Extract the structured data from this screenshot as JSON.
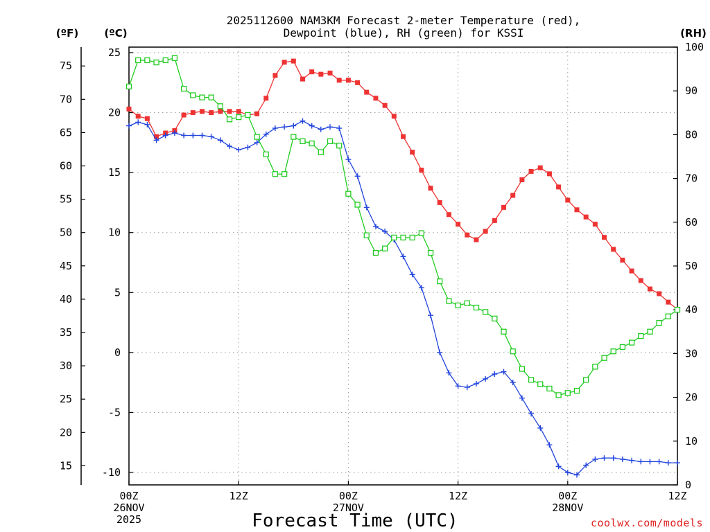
{
  "chart_data": {
    "type": "line",
    "title_lines": [
      "2025112600 NAM3KM Forecast 2-meter Temperature (red),",
      "Dewpoint (blue), RH (green) for KSSI"
    ],
    "units": {
      "fahrenheit": "(ºF)",
      "celsius": "(ºC)",
      "rh": "(RH)"
    },
    "xlabel": "Forecast Time (UTC)",
    "credit": "coolwx.com/models",
    "x_range_hours": [
      0,
      60
    ],
    "ylim_celsius": [
      -10.5,
      25.5
    ],
    "rh_range": [
      0,
      100
    ],
    "x_ticks": [
      {
        "hour": 0,
        "lines": [
          "00Z",
          "26NOV",
          "2025"
        ]
      },
      {
        "hour": 12,
        "lines": [
          "12Z"
        ]
      },
      {
        "hour": 24,
        "lines": [
          "00Z",
          "27NOV"
        ]
      },
      {
        "hour": 36,
        "lines": [
          "12Z"
        ]
      },
      {
        "hour": 48,
        "lines": [
          "00Z",
          "28NOV"
        ]
      },
      {
        "hour": 60,
        "lines": [
          "12Z"
        ]
      }
    ],
    "celsius_ticks": [
      -10,
      -5,
      0,
      5,
      10,
      15,
      20,
      25
    ],
    "fahrenheit_ticks": [
      15,
      20,
      25,
      30,
      35,
      40,
      45,
      50,
      55,
      60,
      65,
      70,
      75
    ],
    "rh_ticks": [
      0,
      10,
      20,
      30,
      40,
      50,
      60,
      70,
      80,
      90,
      100
    ],
    "hours": [
      0,
      1,
      2,
      3,
      4,
      5,
      6,
      7,
      8,
      9,
      10,
      11,
      12,
      13,
      14,
      15,
      16,
      17,
      18,
      19,
      20,
      21,
      22,
      23,
      24,
      25,
      26,
      27,
      28,
      29,
      30,
      31,
      32,
      33,
      34,
      35,
      36,
      37,
      38,
      39,
      40,
      41,
      42,
      43,
      44,
      45,
      46,
      47,
      48,
      49,
      50,
      51,
      52,
      53,
      54,
      55,
      56,
      57,
      58,
      59,
      60
    ],
    "series": [
      {
        "name": "2-meter Temperature",
        "unit": "C",
        "color": "#ee3333",
        "marker": "filled-square",
        "values": [
          20.3,
          19.7,
          19.5,
          18.0,
          18.3,
          18.5,
          19.8,
          20.0,
          20.1,
          20.0,
          20.1,
          20.1,
          20.1,
          19.8,
          19.9,
          21.2,
          23.1,
          24.2,
          24.3,
          22.8,
          23.4,
          23.2,
          23.3,
          22.7,
          22.7,
          22.5,
          21.7,
          21.2,
          20.6,
          19.7,
          18.0,
          16.7,
          15.2,
          13.7,
          12.5,
          11.5,
          10.7,
          9.8,
          9.4,
          10.1,
          11.0,
          12.1,
          13.1,
          14.4,
          15.1,
          15.4,
          14.9,
          13.8,
          12.7,
          11.9,
          11.3,
          10.7,
          9.6,
          8.6,
          7.7,
          6.8,
          6.0,
          5.3,
          4.9,
          4.2,
          3.6
        ]
      },
      {
        "name": "Dewpoint",
        "unit": "C",
        "color": "#2244dd",
        "marker": "plus",
        "values": [
          18.9,
          19.2,
          19.0,
          17.7,
          18.1,
          18.3,
          18.1,
          18.1,
          18.1,
          18.0,
          17.7,
          17.2,
          16.9,
          17.1,
          17.5,
          18.2,
          18.7,
          18.8,
          18.9,
          19.3,
          18.9,
          18.6,
          18.8,
          18.7,
          16.1,
          14.7,
          12.1,
          10.5,
          10.1,
          9.4,
          8.0,
          6.5,
          5.4,
          3.1,
          0.0,
          -1.7,
          -2.8,
          -2.9,
          -2.6,
          -2.2,
          -1.8,
          -1.6,
          -2.5,
          -3.8,
          -5.1,
          -6.3,
          -7.7,
          -9.5,
          -10.0,
          -10.2,
          -9.4,
          -8.9,
          -8.8,
          -8.8,
          -8.9,
          -9.0,
          -9.1,
          -9.1,
          -9.1,
          -9.2,
          -9.2
        ]
      },
      {
        "name": "RH",
        "unit": "%",
        "color": "#22cc22",
        "marker": "open-square",
        "values": [
          91,
          97,
          97,
          96.5,
          97,
          97.5,
          90.5,
          89,
          88.5,
          88.5,
          86.5,
          83.5,
          84,
          84.5,
          79.5,
          75.5,
          71,
          71,
          79.5,
          78.5,
          78,
          76,
          78.5,
          77.5,
          66.5,
          64,
          57,
          53,
          54,
          56.5,
          56.5,
          56.5,
          57.5,
          53,
          46.5,
          42,
          41,
          41.5,
          40.5,
          39.5,
          38,
          35,
          30.5,
          26.5,
          24,
          23,
          22,
          20.5,
          21,
          21.5,
          24,
          27,
          29,
          30.5,
          31.5,
          32.5,
          34,
          35,
          37,
          38.5,
          40
        ]
      }
    ]
  }
}
